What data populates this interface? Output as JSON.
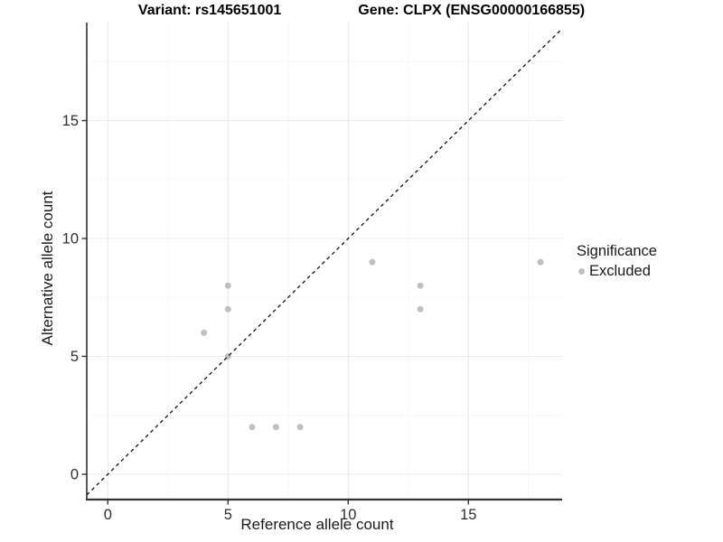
{
  "header": {
    "variant_title": "Variant: rs145651001",
    "gene_title": "Gene: CLPX (ENSG00000166855)"
  },
  "chart_data": {
    "type": "scatter",
    "xlabel": "Reference allele count",
    "ylabel": "Alternative allele count",
    "xticks": [
      0,
      5,
      10,
      15
    ],
    "yticks": [
      0,
      5,
      10,
      15
    ],
    "xlim": [
      -0.876,
      18.9
    ],
    "ylim": [
      -1.073,
      19.157
    ],
    "minor_step": 2.5,
    "grid": true,
    "identity_line": {
      "type": "dashed",
      "slope": 1,
      "intercept": 0,
      "color": "#111111"
    },
    "series": [
      {
        "name": "Excluded",
        "marker": "circle",
        "color": "#bfbfbf",
        "points": [
          [
            4,
            6
          ],
          [
            5,
            5
          ],
          [
            5,
            7
          ],
          [
            5,
            8
          ],
          [
            6,
            2
          ],
          [
            7,
            2
          ],
          [
            8,
            2
          ],
          [
            11,
            9
          ],
          [
            13,
            7
          ],
          [
            13,
            8
          ],
          [
            18,
            9
          ]
        ]
      }
    ],
    "legend": {
      "title": "Significance",
      "position": "right",
      "entries": [
        {
          "label": "Excluded",
          "color": "#bfbfbf"
        }
      ]
    }
  },
  "colors": {
    "background": "#ffffff",
    "grid_major": "#e9e9e9",
    "grid_minor": "#f3f3f3",
    "axis_line": "#333333",
    "tick_text": "#2e2e2e",
    "title_text": "#000000"
  }
}
